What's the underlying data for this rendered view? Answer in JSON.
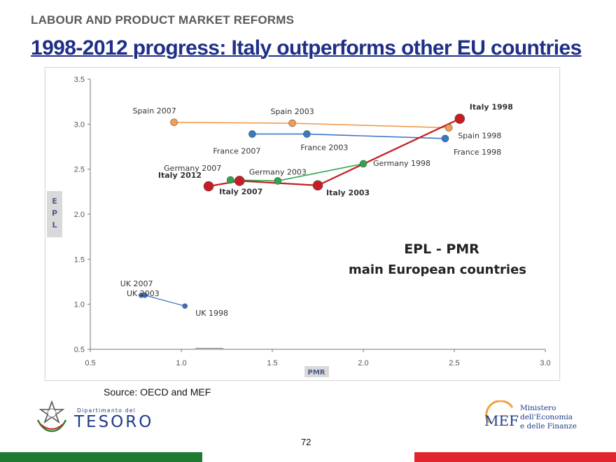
{
  "header": {
    "section": "LABOUR AND PRODUCT MARKET REFORMS",
    "title": "1998-2012 progress: Italy outperforms other EU countries"
  },
  "source": "Source: OECD and MEF",
  "page_number": "72",
  "logos": {
    "left_small": "Dipartimento del",
    "left_big": "TESORO",
    "right_mark": "MEF",
    "right_lines": [
      "Ministero",
      "dell'Economia",
      "e delle Finanze"
    ]
  },
  "colors": {
    "header_blue": "#1f2f87",
    "spain": "#f39c4f",
    "france": "#3a78c2",
    "germany": "#2ba84a",
    "italy": "#c41e24",
    "uk": "#3a6fbf",
    "footer_green": "#1e7a32",
    "footer_red": "#e0262b"
  },
  "chart_data": {
    "type": "line",
    "overlay_title": [
      "EPL - PMR",
      "main European countries"
    ],
    "xlabel": "PMR",
    "ylabel": "EPL",
    "xlim": [
      0.5,
      3.0
    ],
    "ylim": [
      0.5,
      3.5
    ],
    "x_ticks": [
      "0.5",
      "1.0",
      "1.5",
      "2.0",
      "2.5",
      "3.0"
    ],
    "y_ticks": [
      "0.5",
      "1.0",
      "1.5",
      "2.0",
      "2.5",
      "3.0",
      "3.5"
    ],
    "grid": false,
    "series": [
      {
        "color": "#f39c4f",
        "points": [
          {
            "label": "Spain 2007",
            "x": 0.96,
            "y": 3.02
          },
          {
            "label": "Spain 2003",
            "x": 1.61,
            "y": 3.01
          },
          {
            "label": "Spain 1998",
            "x": 2.47,
            "y": 2.96
          }
        ]
      },
      {
        "color": "#3a78c2",
        "points": [
          {
            "label": "France 2007",
            "x": 1.39,
            "y": 2.89
          },
          {
            "label": "France 2003",
            "x": 1.69,
            "y": 2.89
          },
          {
            "label": "France 1998",
            "x": 2.45,
            "y": 2.84
          }
        ]
      },
      {
        "color": "#2ba84a",
        "points": [
          {
            "label": "Germany 2007",
            "x": 1.27,
            "y": 2.38
          },
          {
            "label": "Germany 2003",
            "x": 1.53,
            "y": 2.37
          },
          {
            "label": "Germany 1998",
            "x": 2.0,
            "y": 2.56
          }
        ]
      },
      {
        "color": "#c41e24",
        "points": [
          {
            "label": "Italy 2012",
            "x": 1.15,
            "y": 2.31
          },
          {
            "label": "Italy 2007",
            "x": 1.32,
            "y": 2.37
          },
          {
            "label": "Italy 2003",
            "x": 1.75,
            "y": 2.32
          },
          {
            "label": "Italy 1998",
            "x": 2.53,
            "y": 3.06
          }
        ]
      },
      {
        "color": "#3a6fbf",
        "points": [
          {
            "label": "UK 2007",
            "x": 0.78,
            "y": 1.1
          },
          {
            "label": "UK 2003",
            "x": 0.8,
            "y": 1.1
          },
          {
            "label": "UK 1998",
            "x": 1.02,
            "y": 0.98
          }
        ]
      }
    ]
  }
}
